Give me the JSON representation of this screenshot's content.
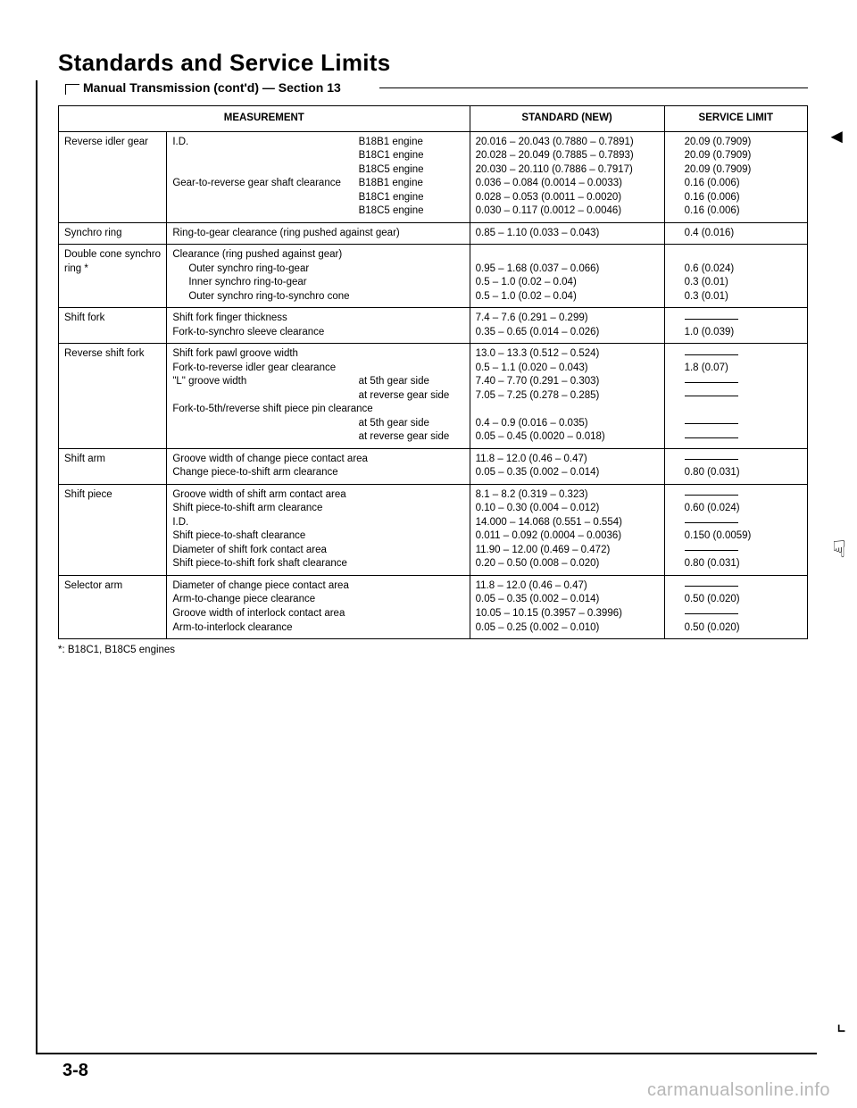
{
  "page": {
    "title": "Standards and Service Limits",
    "section": "Manual Transmission (cont'd) — Section 13",
    "footnote": "*: B18C1, B18C5 engines",
    "page_number": "3-8",
    "watermark": "carmanualsonline.info"
  },
  "headers": {
    "measurement": "MEASUREMENT",
    "standard": "STANDARD (NEW)",
    "service_limit": "SERVICE LIMIT"
  },
  "rows": [
    {
      "item": "Reverse idler gear",
      "measurements": [
        {
          "l": "I.D.",
          "r": "B18B1 engine"
        },
        {
          "l": "",
          "r": "B18C1 engine"
        },
        {
          "l": "",
          "r": "B18C5 engine"
        },
        {
          "l": "Gear-to-reverse gear shaft clearance",
          "r": "B18B1 engine"
        },
        {
          "l": "",
          "r": "B18C1 engine"
        },
        {
          "l": "",
          "r": "B18C5 engine"
        }
      ],
      "standard": [
        "20.016 – 20.043 (0.7880 – 0.7891)",
        "20.028 – 20.049 (0.7885 – 0.7893)",
        "20.030 – 20.110 (0.7886 – 0.7917)",
        "0.036 – 0.084 (0.0014 – 0.0033)",
        "0.028 – 0.053 (0.0011 – 0.0020)",
        "0.030 – 0.117 (0.0012 – 0.0046)"
      ],
      "limit": [
        "20.09 (0.7909)",
        "20.09 (0.7909)",
        "20.09 (0.7909)",
        "0.16 (0.006)",
        "0.16 (0.006)",
        "0.16 (0.006)"
      ]
    },
    {
      "item": "Synchro ring",
      "measurements": [
        {
          "l": "Ring-to-gear clearance (ring pushed against gear)",
          "r": ""
        }
      ],
      "standard": [
        "0.85 – 1.10 (0.033 – 0.043)"
      ],
      "limit": [
        "0.4 (0.016)"
      ]
    },
    {
      "item": "Double cone synchro ring *",
      "measurements": [
        {
          "l": "Clearance (ring pushed against gear)",
          "r": ""
        },
        {
          "l": "    Outer synchro ring-to-gear",
          "r": "",
          "indent": true
        },
        {
          "l": "    Inner synchro ring-to-gear",
          "r": "",
          "indent": true
        },
        {
          "l": "    Outer synchro ring-to-synchro cone",
          "r": "",
          "indent": true
        }
      ],
      "standard": [
        "",
        "0.95 – 1.68 (0.037 – 0.066)",
        "0.5 – 1.0 (0.02 – 0.04)",
        "0.5 – 1.0 (0.02 – 0.04)"
      ],
      "limit": [
        "",
        "0.6 (0.024)",
        "0.3 (0.01)",
        "0.3 (0.01)"
      ]
    },
    {
      "item": "Shift fork",
      "measurements": [
        {
          "l": "Shift fork finger thickness",
          "r": ""
        },
        {
          "l": "Fork-to-synchro sleeve clearance",
          "r": ""
        }
      ],
      "standard": [
        "7.4 – 7.6 (0.291 – 0.299)",
        "0.35 – 0.65 (0.014 – 0.026)"
      ],
      "limit": [
        "DASH",
        "1.0 (0.039)"
      ]
    },
    {
      "item": "Reverse shift fork",
      "measurements": [
        {
          "l": "Shift fork pawl groove width",
          "r": ""
        },
        {
          "l": "Fork-to-reverse idler gear clearance",
          "r": ""
        },
        {
          "l": "\"L\" groove width",
          "r": "at 5th gear side"
        },
        {
          "l": "",
          "r": "at reverse gear side"
        },
        {
          "l": "Fork-to-5th/reverse shift piece pin clearance",
          "r": ""
        },
        {
          "l": "",
          "r": "at 5th gear side"
        },
        {
          "l": "",
          "r": "at reverse gear side"
        }
      ],
      "standard": [
        "13.0 – 13.3 (0.512 – 0.524)",
        "0.5 – 1.1 (0.020 – 0.043)",
        "7.40 – 7.70 (0.291 – 0.303)",
        "7.05 – 7.25 (0.278 – 0.285)",
        "",
        "0.4 – 0.9 (0.016 – 0.035)",
        "0.05 – 0.45 (0.0020 – 0.018)"
      ],
      "limit": [
        "DASH",
        "1.8 (0.07)",
        "DASH",
        "DASH",
        "",
        "DASH",
        "DASH"
      ]
    },
    {
      "item": "Shift arm",
      "measurements": [
        {
          "l": "Groove width of change piece contact area",
          "r": ""
        },
        {
          "l": "Change piece-to-shift arm clearance",
          "r": ""
        }
      ],
      "standard": [
        "11.8 – 12.0 (0.46 – 0.47)",
        "0.05 – 0.35 (0.002 – 0.014)"
      ],
      "limit": [
        "DASH",
        "0.80 (0.031)"
      ]
    },
    {
      "item": "Shift piece",
      "measurements": [
        {
          "l": "Groove width of shift arm contact area",
          "r": ""
        },
        {
          "l": "Shift piece-to-shift arm clearance",
          "r": ""
        },
        {
          "l": "I.D.",
          "r": ""
        },
        {
          "l": "Shift piece-to-shaft clearance",
          "r": ""
        },
        {
          "l": "Diameter of shift fork contact area",
          "r": ""
        },
        {
          "l": "Shift piece-to-shift fork shaft clearance",
          "r": ""
        }
      ],
      "standard": [
        "8.1 – 8.2 (0.319 – 0.323)",
        "0.10 – 0.30 (0.004 – 0.012)",
        "14.000 – 14.068 (0.551 – 0.554)",
        "0.011 – 0.092 (0.0004 – 0.0036)",
        "11.90 – 12.00 (0.469 – 0.472)",
        "0.20 – 0.50 (0.008 – 0.020)"
      ],
      "limit": [
        "DASH",
        "0.60 (0.024)",
        "DASH",
        "0.150 (0.0059)",
        "DASH",
        "0.80 (0.031)"
      ]
    },
    {
      "item": "Selector arm",
      "measurements": [
        {
          "l": "Diameter of change piece contact area",
          "r": ""
        },
        {
          "l": "Arm-to-change piece clearance",
          "r": ""
        },
        {
          "l": "Groove width of interlock contact area",
          "r": ""
        },
        {
          "l": "Arm-to-interlock clearance",
          "r": ""
        }
      ],
      "standard": [
        "11.8 – 12.0 (0.46 – 0.47)",
        "0.05 – 0.35 (0.002 – 0.014)",
        "10.05 – 10.15 (0.3957 – 0.3996)",
        "0.05 – 0.25 (0.002 – 0.010)"
      ],
      "limit": [
        "DASH",
        "0.50 (0.020)",
        "DASH",
        "0.50 (0.020)"
      ]
    }
  ]
}
